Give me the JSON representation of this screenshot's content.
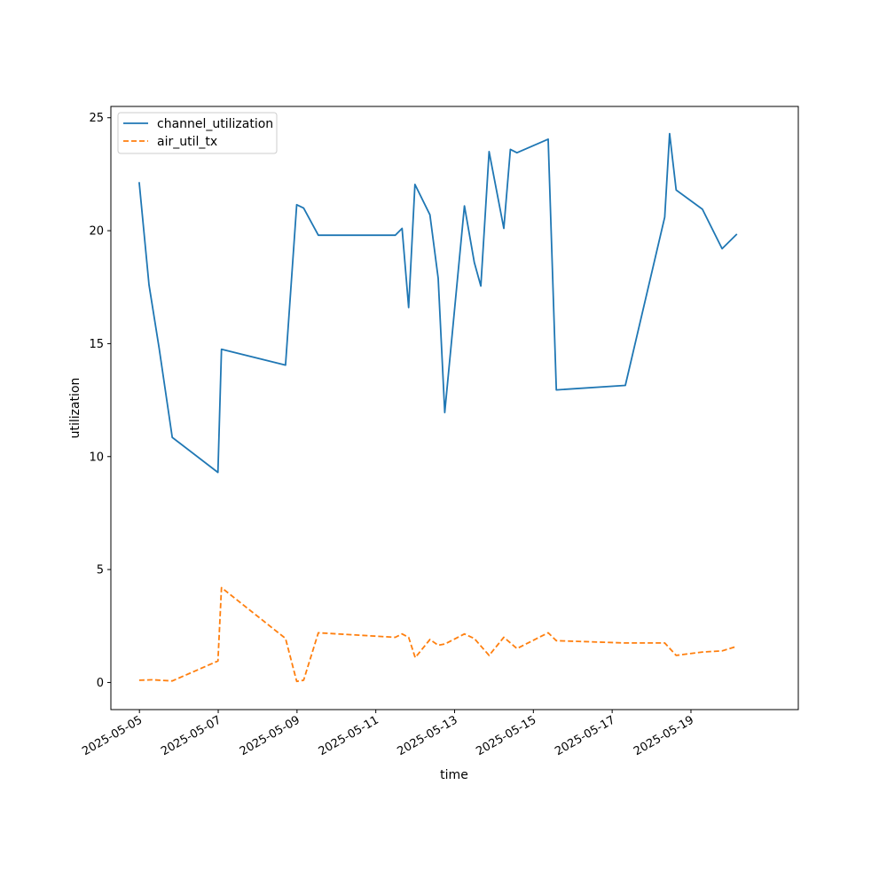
{
  "chart_data": {
    "type": "line",
    "title": "",
    "xlabel": "time",
    "ylabel": "utilization",
    "xlim": [
      "2025-05-04T06:36",
      "2025-05-21T17:24"
    ],
    "ylim": [
      -1.2,
      25.5
    ],
    "x_ticks": [
      "2025-05-05",
      "2025-05-07",
      "2025-05-09",
      "2025-05-11",
      "2025-05-13",
      "2025-05-15",
      "2025-05-17",
      "2025-05-19"
    ],
    "y_ticks": [
      0,
      5,
      10,
      15,
      20,
      25
    ],
    "grid": false,
    "legend_position": "top-left",
    "series": [
      {
        "name": "channel_utilization",
        "color": "#1f77b4",
        "dash": "solid",
        "points": [
          [
            "2025-05-04T23:50",
            22.15
          ],
          [
            "2025-05-05T05:50",
            17.6
          ],
          [
            "2025-05-05T12:00",
            14.8
          ],
          [
            "2025-05-05T20:00",
            10.85
          ],
          [
            "2025-05-06T23:50",
            9.3
          ],
          [
            "2025-05-07T02:00",
            14.75
          ],
          [
            "2025-05-08T17:00",
            14.05
          ],
          [
            "2025-05-08T23:50",
            21.15
          ],
          [
            "2025-05-09T04:00",
            21.0
          ],
          [
            "2025-05-09T13:00",
            19.8
          ],
          [
            "2025-05-11T11:50",
            19.8
          ],
          [
            "2025-05-11T16:00",
            20.1
          ],
          [
            "2025-05-11T20:00",
            16.6
          ],
          [
            "2025-05-11T23:50",
            22.05
          ],
          [
            "2025-05-12T09:00",
            20.7
          ],
          [
            "2025-05-12T14:00",
            17.9
          ],
          [
            "2025-05-12T18:00",
            11.95
          ],
          [
            "2025-05-13T06:00",
            21.1
          ],
          [
            "2025-05-13T12:00",
            18.6
          ],
          [
            "2025-05-13T16:00",
            17.55
          ],
          [
            "2025-05-13T21:00",
            23.5
          ],
          [
            "2025-05-14T06:00",
            20.1
          ],
          [
            "2025-05-14T10:00",
            23.6
          ],
          [
            "2025-05-14T14:00",
            23.45
          ],
          [
            "2025-05-15T09:00",
            24.05
          ],
          [
            "2025-05-15T14:00",
            12.95
          ],
          [
            "2025-05-17T08:00",
            13.15
          ],
          [
            "2025-05-18T08:00",
            20.6
          ],
          [
            "2025-05-18T11:00",
            24.3
          ],
          [
            "2025-05-18T15:00",
            21.8
          ],
          [
            "2025-05-19T07:00",
            20.95
          ],
          [
            "2025-05-19T19:00",
            19.2
          ],
          [
            "2025-05-20T04:00",
            19.85
          ]
        ]
      },
      {
        "name": "air_util_tx",
        "color": "#ff7f0e",
        "dash": "dashed",
        "points": [
          [
            "2025-05-04T23:50",
            0.1
          ],
          [
            "2025-05-05T08:00",
            0.12
          ],
          [
            "2025-05-05T20:00",
            0.07
          ],
          [
            "2025-05-06T23:50",
            0.95
          ],
          [
            "2025-05-07T02:00",
            4.2
          ],
          [
            "2025-05-08T17:00",
            1.95
          ],
          [
            "2025-05-08T23:50",
            0.05
          ],
          [
            "2025-05-09T04:00",
            0.1
          ],
          [
            "2025-05-09T13:00",
            2.2
          ],
          [
            "2025-05-11T11:50",
            2.0
          ],
          [
            "2025-05-11T16:00",
            2.15
          ],
          [
            "2025-05-11T20:00",
            2.0
          ],
          [
            "2025-05-12T00:00",
            1.1
          ],
          [
            "2025-05-12T09:00",
            1.9
          ],
          [
            "2025-05-12T14:00",
            1.65
          ],
          [
            "2025-05-12T18:00",
            1.7
          ],
          [
            "2025-05-13T06:00",
            2.15
          ],
          [
            "2025-05-13T12:00",
            1.95
          ],
          [
            "2025-05-13T21:00",
            1.2
          ],
          [
            "2025-05-14T06:00",
            2.0
          ],
          [
            "2025-05-14T14:00",
            1.5
          ],
          [
            "2025-05-15T09:00",
            2.2
          ],
          [
            "2025-05-15T14:00",
            1.85
          ],
          [
            "2025-05-17T08:00",
            1.75
          ],
          [
            "2025-05-18T08:00",
            1.75
          ],
          [
            "2025-05-18T15:00",
            1.2
          ],
          [
            "2025-05-19T07:00",
            1.35
          ],
          [
            "2025-05-19T19:00",
            1.4
          ],
          [
            "2025-05-20T04:00",
            1.6
          ]
        ]
      }
    ]
  }
}
